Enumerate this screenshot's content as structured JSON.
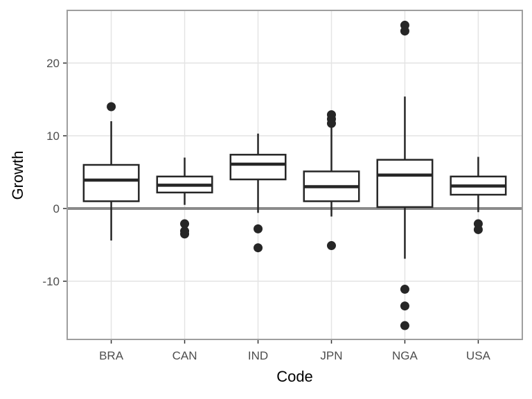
{
  "chart_data": {
    "type": "boxplot",
    "title": "",
    "xlabel": "Code",
    "ylabel": "Growth",
    "categories": [
      "BRA",
      "CAN",
      "IND",
      "JPN",
      "NGA",
      "USA"
    ],
    "y_ticks": [
      -10,
      0,
      10,
      20
    ],
    "ylim": [
      -18.0,
      27.24
    ],
    "grid": "major-only",
    "legend": "none",
    "reference_line_y": 0,
    "stats": [
      {
        "code": "BRA",
        "whisker_low": -4.4,
        "q1": 1.0,
        "median": 3.9,
        "q3": 6.0,
        "whisker_high": 12.0,
        "outliers": [
          14.0
        ]
      },
      {
        "code": "CAN",
        "whisker_low": 0.5,
        "q1": 2.2,
        "median": 3.2,
        "q3": 4.4,
        "whisker_high": 7.0,
        "outliers": [
          -2.1,
          -3.1,
          -3.5
        ]
      },
      {
        "code": "IND",
        "whisker_low": -0.6,
        "q1": 4.0,
        "median": 6.1,
        "q3": 7.4,
        "whisker_high": 10.3,
        "outliers": [
          -2.8,
          -5.4
        ]
      },
      {
        "code": "JPN",
        "whisker_low": -1.1,
        "q1": 1.0,
        "median": 3.0,
        "q3": 5.1,
        "whisker_high": 11.2,
        "outliers": [
          12.9,
          12.3,
          11.7,
          -5.1
        ]
      },
      {
        "code": "NGA",
        "whisker_low": -6.9,
        "q1": 0.2,
        "median": 4.6,
        "q3": 6.7,
        "whisker_high": 15.4,
        "outliers": [
          25.2,
          24.4,
          -11.1,
          -13.4,
          -16.1
        ]
      },
      {
        "code": "USA",
        "whisker_low": -0.5,
        "q1": 1.9,
        "median": 3.1,
        "q3": 4.4,
        "whisker_high": 7.1,
        "outliers": [
          -2.1,
          -2.9
        ]
      }
    ],
    "colors": {
      "box_stroke": "#262626",
      "box_fill": "#ffffff",
      "grid": "#e4e4e4",
      "panel_border": "#9e9e9e",
      "zero_line": "#8a8a8a",
      "tick_mark": "#333333",
      "tick_label": "#4d4d4d",
      "axis_title": "#000000",
      "background": "#ffffff"
    }
  }
}
